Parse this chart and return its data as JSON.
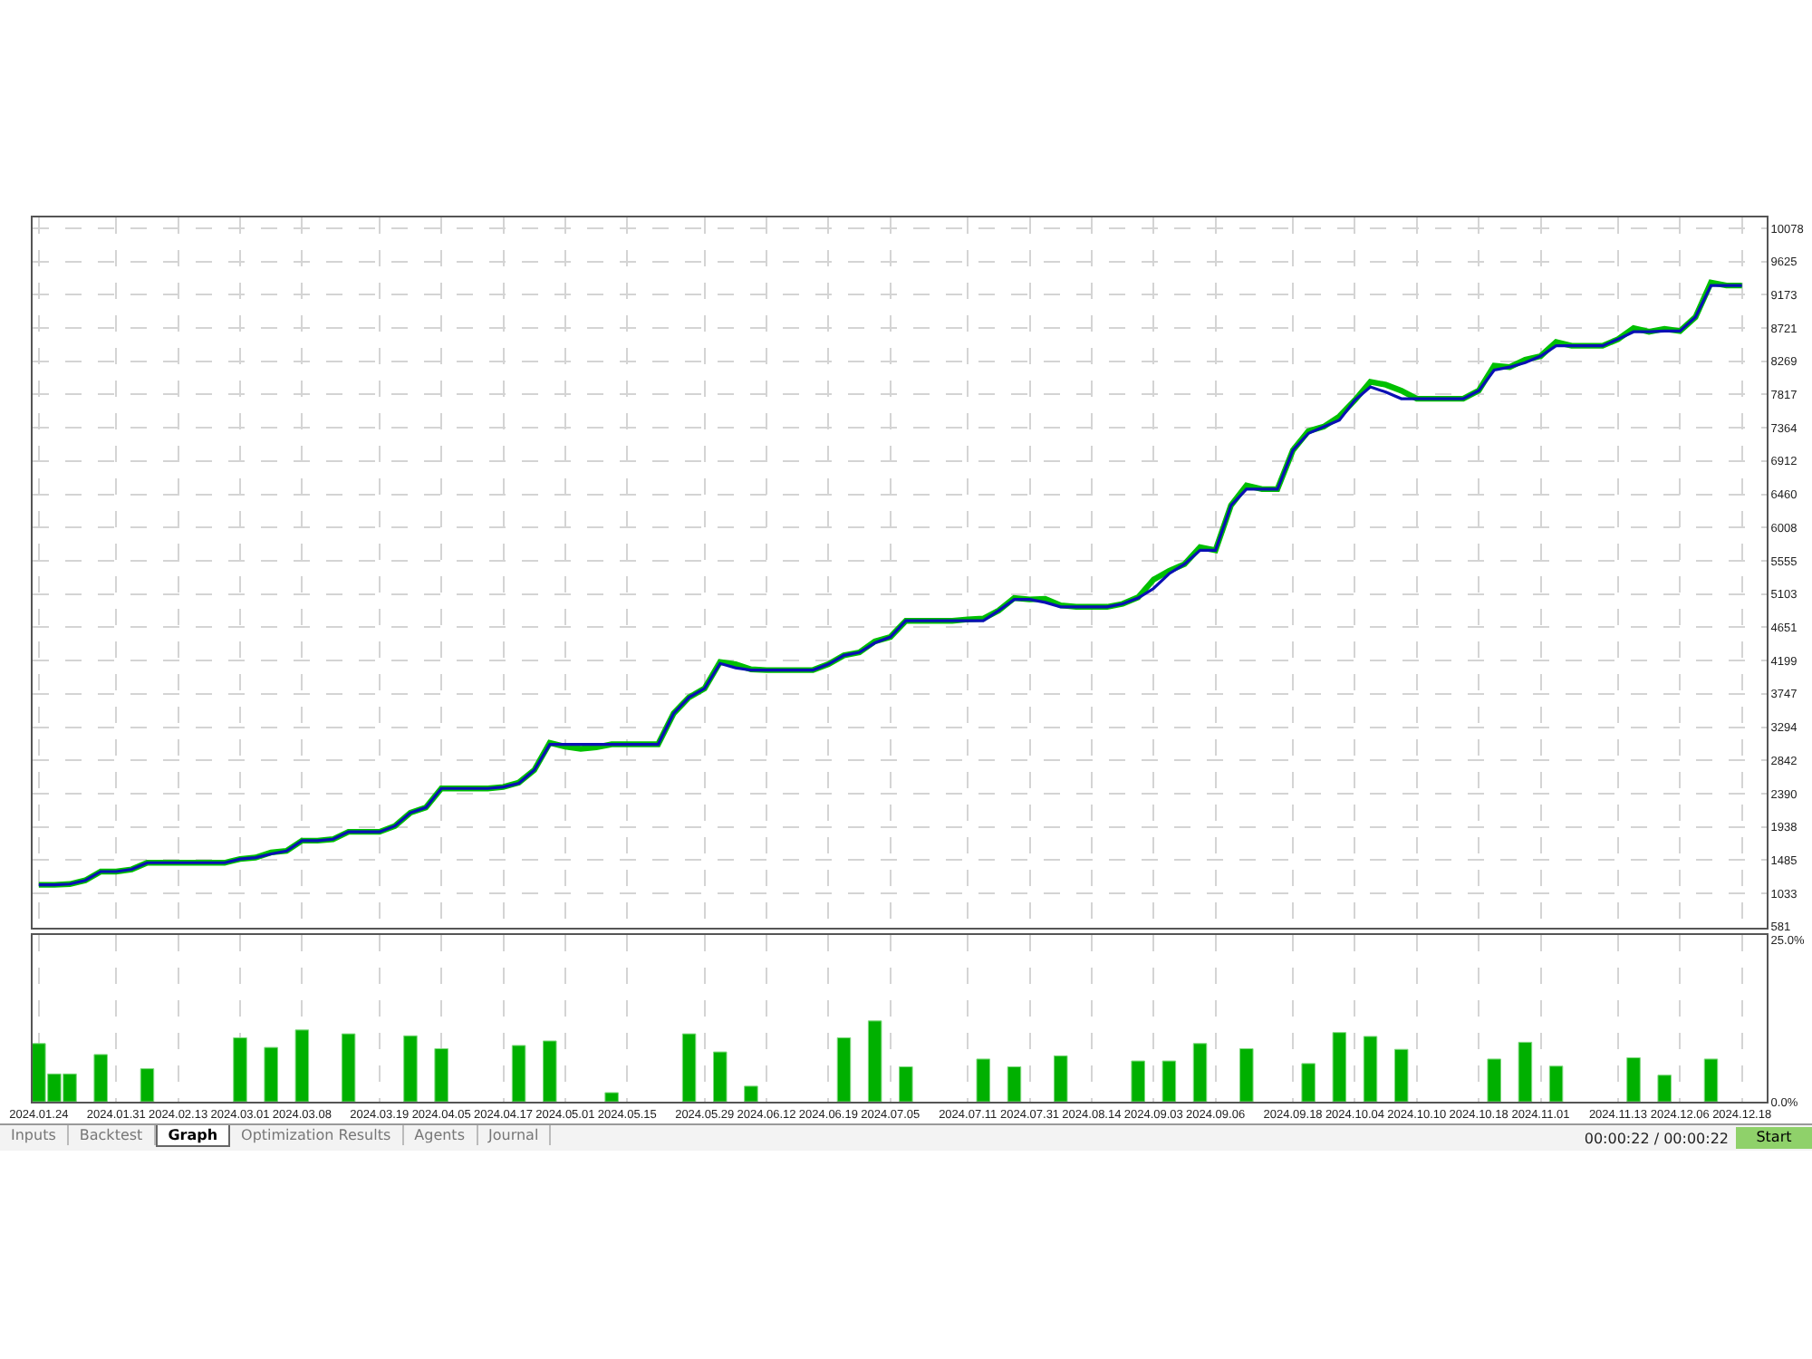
{
  "chart_data": [
    {
      "type": "line",
      "ylim": [
        566,
        10225
      ],
      "yticks": [
        581,
        1033,
        1485,
        1938,
        2390,
        2842,
        3294,
        3747,
        4199,
        4651,
        5103,
        5555,
        6008,
        6460,
        6912,
        7364,
        7817,
        8269,
        8721,
        9173,
        9625,
        10078
      ],
      "categories": [
        "2024.01.24",
        null,
        null,
        null,
        null,
        "2024.01.31",
        null,
        null,
        null,
        "2024.02.13",
        null,
        null,
        null,
        "2024.03.01",
        null,
        null,
        null,
        "2024.03.08",
        null,
        null,
        null,
        null,
        "2024.03.19",
        null,
        null,
        null,
        "2024.04.05",
        null,
        null,
        null,
        "2024.04.17",
        null,
        null,
        null,
        "2024.05.01",
        null,
        null,
        null,
        "2024.05.15",
        null,
        null,
        null,
        null,
        "2024.05.29",
        null,
        null,
        null,
        "2024.06.12",
        null,
        null,
        null,
        "2024.06.19",
        null,
        null,
        null,
        "2024.07.05",
        null,
        null,
        null,
        null,
        "2024.07.11",
        null,
        null,
        null,
        "2024.07.31",
        null,
        null,
        null,
        "2024.08.14",
        null,
        null,
        null,
        "2024.09.03",
        null,
        null,
        null,
        "2024.09.06",
        null,
        null,
        null,
        null,
        "2024.09.18",
        null,
        null,
        null,
        "2024.10.04",
        null,
        null,
        null,
        "2024.10.10",
        null,
        null,
        null,
        "2024.10.18",
        null,
        null,
        null,
        "2024.11.01",
        null,
        null,
        null,
        null,
        "2024.11.13",
        null,
        null,
        null,
        "2024.12.06",
        null,
        null,
        null,
        "2024.12.18",
        null
      ],
      "tick_labels": "y",
      "grid": true,
      "marker": "none",
      "line_style": "solid",
      "series": [
        {
          "color": "#00c000",
          "values": [
            1150,
            1150,
            1160,
            1210,
            1330,
            1330,
            1360,
            1450,
            1450,
            1450,
            1450,
            1450,
            1450,
            1500,
            1520,
            1590,
            1610,
            1750,
            1750,
            1770,
            1870,
            1870,
            1870,
            1950,
            2130,
            2200,
            2460,
            2460,
            2460,
            2460,
            2480,
            2540,
            2710,
            3080,
            3030,
            3000,
            3020,
            3060,
            3060,
            3060,
            3060,
            3480,
            3700,
            3820,
            4180,
            4150,
            4080,
            4070,
            4070,
            4070,
            4070,
            4150,
            4270,
            4310,
            4460,
            4520,
            4740,
            4740,
            4740,
            4740,
            4760,
            4770,
            4880,
            5050,
            5030,
            5040,
            4950,
            4930,
            4930,
            4930,
            4970,
            5060,
            5300,
            5420,
            5510,
            5740,
            5700,
            6310,
            6580,
            6530,
            6530,
            7060,
            7320,
            7380,
            7520,
            7740,
            7990,
            7950,
            7870,
            7760,
            7760,
            7760,
            7760,
            7870,
            8210,
            8190,
            8290,
            8340,
            8530,
            8480,
            8480,
            8480,
            8570,
            8720,
            8670,
            8710,
            8680,
            8870,
            9340,
            9300,
            9300,
            null
          ]
        },
        {
          "color": "#0a10b4",
          "values": [
            1150,
            1150,
            1160,
            1210,
            1330,
            1330,
            1360,
            1450,
            1450,
            1450,
            1450,
            1450,
            1450,
            1500,
            1520,
            1570,
            1610,
            1750,
            1750,
            1770,
            1870,
            1870,
            1870,
            1950,
            2130,
            2200,
            2460,
            2460,
            2460,
            2460,
            2480,
            2530,
            2710,
            3060,
            3060,
            3060,
            3060,
            3060,
            3060,
            3060,
            3060,
            3480,
            3700,
            3820,
            4160,
            4100,
            4070,
            4070,
            4070,
            4070,
            4070,
            4150,
            4270,
            4310,
            4440,
            4520,
            4740,
            4740,
            4740,
            4740,
            4740,
            4740,
            4880,
            5030,
            5030,
            4990,
            4930,
            4930,
            4930,
            4930,
            4970,
            5050,
            5180,
            5380,
            5510,
            5700,
            5700,
            6310,
            6530,
            6530,
            6530,
            7060,
            7290,
            7380,
            7470,
            7740,
            7920,
            7850,
            7760,
            7760,
            7760,
            7760,
            7760,
            7870,
            8150,
            8190,
            8250,
            8340,
            8480,
            8480,
            8480,
            8480,
            8570,
            8670,
            8670,
            8680,
            8680,
            8870,
            9300,
            9300,
            9300,
            null
          ]
        }
      ]
    },
    {
      "type": "bar",
      "ylim": [
        0,
        25.8
      ],
      "yticks": [
        {
          "value": 0,
          "label": "0.0%"
        },
        {
          "value": 25,
          "label": "25.0%"
        }
      ],
      "categories": [
        "2024.01.24",
        null,
        null,
        null,
        null,
        "2024.01.31",
        null,
        null,
        null,
        "2024.02.13",
        null,
        null,
        null,
        "2024.03.01",
        null,
        null,
        null,
        "2024.03.08",
        null,
        null,
        null,
        null,
        "2024.03.19",
        null,
        null,
        null,
        "2024.04.05",
        null,
        null,
        null,
        "2024.04.17",
        null,
        null,
        null,
        "2024.05.01",
        null,
        null,
        null,
        "2024.05.15",
        null,
        null,
        null,
        null,
        "2024.05.29",
        null,
        null,
        null,
        "2024.06.12",
        null,
        null,
        null,
        "2024.06.19",
        null,
        null,
        null,
        "2024.07.05",
        null,
        null,
        null,
        null,
        "2024.07.11",
        null,
        null,
        null,
        "2024.07.31",
        null,
        null,
        null,
        "2024.08.14",
        null,
        null,
        null,
        "2024.09.03",
        null,
        null,
        null,
        "2024.09.06",
        null,
        null,
        null,
        null,
        "2024.09.18",
        null,
        null,
        null,
        "2024.10.04",
        null,
        null,
        null,
        "2024.10.10",
        null,
        null,
        null,
        "2024.10.18",
        null,
        null,
        null,
        "2024.11.01",
        null,
        null,
        null,
        null,
        "2024.11.13",
        null,
        null,
        null,
        "2024.12.06",
        null,
        null,
        null,
        "2024.12.18",
        null
      ],
      "grid": "x",
      "values": [
        9.0,
        4.3,
        4.3,
        null,
        7.3,
        null,
        null,
        5.1,
        null,
        null,
        null,
        null,
        null,
        9.9,
        null,
        8.4,
        null,
        11.1,
        null,
        null,
        10.5,
        null,
        null,
        null,
        10.2,
        null,
        8.2,
        null,
        null,
        null,
        null,
        8.7,
        null,
        9.4,
        null,
        null,
        null,
        1.4,
        null,
        null,
        null,
        null,
        10.5,
        null,
        7.7,
        null,
        2.4,
        null,
        null,
        null,
        null,
        null,
        9.9,
        null,
        12.5,
        null,
        5.4,
        null,
        null,
        null,
        null,
        6.6,
        null,
        5.4,
        null,
        null,
        7.1,
        null,
        null,
        null,
        null,
        6.3,
        null,
        6.3,
        null,
        9.0,
        null,
        null,
        8.2,
        null,
        null,
        null,
        5.9,
        null,
        10.7,
        null,
        10.1,
        null,
        8.1,
        null,
        null,
        null,
        null,
        null,
        6.6,
        null,
        9.2,
        null,
        5.5,
        null,
        null,
        null,
        null,
        6.8,
        null,
        4.1,
        null,
        null,
        6.6,
        null,
        null,
        null
      ],
      "color": "#00b000",
      "annotations": [
        "Inputs",
        "Backtest",
        "Graph",
        "Optimization Results",
        "Agents",
        "Journal",
        "00:00:22 / 00:00:22",
        "Start"
      ]
    }
  ]
}
